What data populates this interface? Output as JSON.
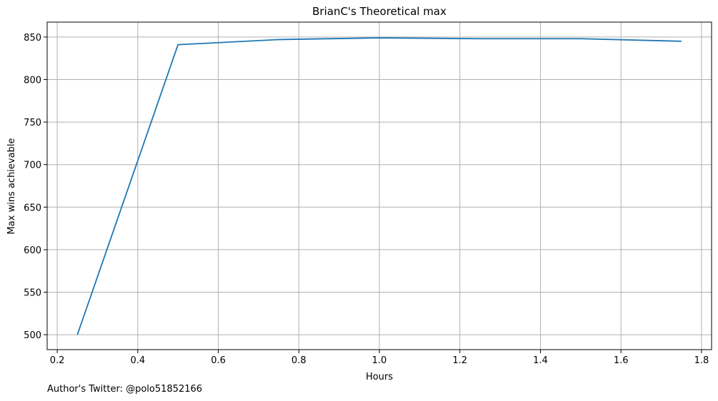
{
  "chart_data": {
    "type": "line",
    "title": "BrianC's Theoretical max",
    "xlabel": "Hours",
    "ylabel": "Max wins achievable",
    "xlim": [
      0.175,
      1.825
    ],
    "ylim": [
      482.5,
      867.5
    ],
    "xticks": [
      0.2,
      0.4,
      0.6,
      0.8,
      1.0,
      1.2,
      1.4,
      1.6,
      1.8
    ],
    "xtick_labels": [
      "0.2",
      "0.4",
      "0.6",
      "0.8",
      "1.0",
      "1.2",
      "1.4",
      "1.6",
      "1.8"
    ],
    "yticks": [
      500,
      550,
      600,
      650,
      700,
      750,
      800,
      850
    ],
    "ytick_labels": [
      "500",
      "550",
      "600",
      "650",
      "700",
      "750",
      "800",
      "850"
    ],
    "grid": true,
    "series": [
      {
        "name": "Max wins",
        "color": "#1f77b4",
        "x": [
          0.25,
          0.5,
          0.75,
          1.0,
          1.25,
          1.5,
          1.75
        ],
        "y": [
          500,
          841,
          847,
          849,
          848,
          848,
          845
        ]
      }
    ]
  },
  "footer": {
    "note": "Author's Twitter: @polo51852166"
  },
  "colors": {
    "grid": "#b0b0b0",
    "axis": "#000000",
    "text": "#000000"
  }
}
